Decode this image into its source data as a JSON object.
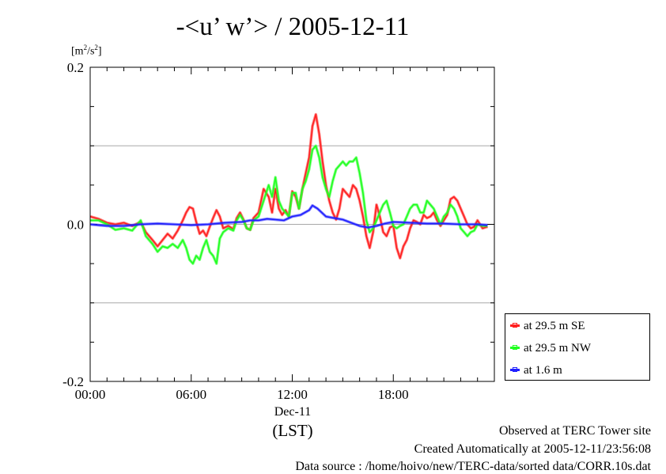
{
  "chart_data": {
    "type": "line",
    "title": "-<u’ w’> / 2005-12-11",
    "ylabel_unit": "[m²/s²]",
    "xlabel": "Dec-11",
    "xunit": "(LST)",
    "ylim": [
      -0.2,
      0.2
    ],
    "xlim": [
      0,
      24
    ],
    "y_ticks": [
      -0.2,
      0.0,
      0.2
    ],
    "y_tick_labels": [
      "-0.2",
      "0.0",
      "0.2"
    ],
    "y_minor_ticks": [
      -0.15,
      -0.1,
      -0.05,
      0.05,
      0.1,
      0.15
    ],
    "x_ticks": [
      0,
      6,
      12,
      18
    ],
    "x_tick_labels": [
      "00:00",
      "06:00",
      "12:00",
      "18:00"
    ],
    "x_minor_every_hours": 1,
    "grid": "horizontal at ±0.1",
    "legend_position": "right, outside plot",
    "series": [
      {
        "name": "at 29.5 m SE",
        "color": "#ff2020",
        "x": [
          0,
          0.5,
          1,
          1.5,
          2,
          2.5,
          3,
          3.3,
          3.7,
          4,
          4.3,
          4.6,
          4.9,
          5.2,
          5.5,
          5.7,
          5.9,
          6.1,
          6.3,
          6.5,
          6.7,
          6.9,
          7.1,
          7.3,
          7.5,
          7.7,
          7.9,
          8.2,
          8.5,
          8.7,
          8.9,
          9.1,
          9.3,
          9.5,
          9.7,
          10,
          10.3,
          10.6,
          10.8,
          11,
          11.2,
          11.4,
          11.6,
          11.8,
          12,
          12.2,
          12.4,
          12.6,
          12.8,
          13,
          13.2,
          13.4,
          13.6,
          13.8,
          14,
          14.2,
          14.4,
          14.6,
          14.8,
          15,
          15.2,
          15.4,
          15.6,
          15.8,
          16,
          16.2,
          16.4,
          16.6,
          16.8,
          17,
          17.2,
          17.4,
          17.6,
          17.8,
          18,
          18.2,
          18.4,
          18.6,
          18.8,
          19,
          19.2,
          19.4,
          19.6,
          19.8,
          20,
          20.2,
          20.4,
          20.6,
          20.8,
          21,
          21.2,
          21.4,
          21.6,
          21.8,
          22,
          22.2,
          22.4,
          22.6,
          22.8,
          23,
          23.3,
          23.6
        ],
        "values": [
          0.01,
          0.007,
          0.002,
          0.0,
          0.002,
          -0.002,
          0.003,
          -0.01,
          -0.02,
          -0.028,
          -0.02,
          -0.012,
          -0.018,
          -0.008,
          0.005,
          0.015,
          0.022,
          0.02,
          0.003,
          -0.012,
          -0.008,
          -0.015,
          -0.003,
          0.008,
          0.018,
          0.01,
          -0.005,
          -0.002,
          -0.006,
          0.008,
          0.015,
          0.006,
          -0.005,
          -0.007,
          0.008,
          0.015,
          0.045,
          0.035,
          0.015,
          0.045,
          0.02,
          0.012,
          0.018,
          0.01,
          0.042,
          0.035,
          0.02,
          0.045,
          0.065,
          0.085,
          0.125,
          0.14,
          0.115,
          0.08,
          0.05,
          0.03,
          0.015,
          0.006,
          0.02,
          0.045,
          0.04,
          0.035,
          0.05,
          0.045,
          0.03,
          0.01,
          -0.015,
          -0.03,
          -0.01,
          0.025,
          0.01,
          -0.01,
          -0.015,
          -0.004,
          -0.002,
          -0.03,
          -0.043,
          -0.028,
          -0.02,
          -0.005,
          0.005,
          0.003,
          0.0,
          0.012,
          0.008,
          0.01,
          0.015,
          0.005,
          -0.002,
          0.005,
          0.012,
          0.032,
          0.035,
          0.03,
          0.02,
          0.01,
          0.0,
          -0.005,
          -0.003,
          0.005,
          -0.005,
          -0.003
        ]
      },
      {
        "name": "at 29.5 m NW",
        "color": "#20ff20",
        "x": [
          0,
          0.5,
          1,
          1.5,
          2,
          2.5,
          3,
          3.3,
          3.7,
          4,
          4.3,
          4.6,
          4.9,
          5.2,
          5.5,
          5.7,
          5.9,
          6.1,
          6.3,
          6.5,
          6.7,
          6.9,
          7.1,
          7.3,
          7.5,
          7.7,
          7.9,
          8.2,
          8.5,
          8.7,
          8.9,
          9.1,
          9.3,
          9.5,
          9.7,
          10,
          10.3,
          10.6,
          10.8,
          11,
          11.2,
          11.4,
          11.6,
          11.8,
          12,
          12.2,
          12.4,
          12.6,
          12.8,
          13,
          13.2,
          13.4,
          13.6,
          13.8,
          14,
          14.2,
          14.4,
          14.6,
          14.8,
          15,
          15.2,
          15.4,
          15.6,
          15.8,
          16,
          16.2,
          16.4,
          16.6,
          16.8,
          17,
          17.2,
          17.4,
          17.6,
          17.8,
          18,
          18.2,
          18.4,
          18.6,
          18.8,
          19,
          19.2,
          19.4,
          19.6,
          19.8,
          20,
          20.2,
          20.4,
          20.6,
          20.8,
          21,
          21.2,
          21.4,
          21.6,
          21.8,
          22,
          22.2,
          22.4,
          22.6,
          22.8,
          23,
          23.3,
          23.6
        ],
        "values": [
          0.005,
          0.005,
          0.0,
          -0.007,
          -0.005,
          -0.008,
          0.005,
          -0.015,
          -0.025,
          -0.035,
          -0.028,
          -0.03,
          -0.025,
          -0.03,
          -0.02,
          -0.03,
          -0.045,
          -0.05,
          -0.04,
          -0.045,
          -0.03,
          -0.02,
          -0.035,
          -0.04,
          -0.05,
          -0.018,
          -0.01,
          -0.005,
          -0.008,
          0.005,
          0.012,
          0.005,
          -0.005,
          -0.007,
          0.005,
          0.01,
          0.03,
          0.05,
          0.035,
          0.06,
          0.03,
          0.02,
          0.015,
          0.01,
          0.04,
          0.04,
          0.02,
          0.045,
          0.055,
          0.07,
          0.095,
          0.1,
          0.085,
          0.06,
          0.045,
          0.035,
          0.055,
          0.07,
          0.075,
          0.08,
          0.075,
          0.08,
          0.08,
          0.085,
          0.065,
          0.04,
          0.005,
          -0.01,
          -0.005,
          0.005,
          0.015,
          0.025,
          0.03,
          0.015,
          -0.002,
          -0.005,
          -0.002,
          0.0,
          0.01,
          0.02,
          0.025,
          0.025,
          0.015,
          0.015,
          0.03,
          0.025,
          0.02,
          0.01,
          0.0,
          0.01,
          0.015,
          0.025,
          0.02,
          0.01,
          -0.005,
          -0.01,
          -0.015,
          -0.01,
          -0.008,
          0.0,
          -0.002,
          -0.002
        ]
      },
      {
        "name": "at 1.6 m",
        "color": "#2020ff",
        "x": [
          0,
          1,
          2,
          3,
          4,
          5,
          6,
          7,
          8,
          9,
          9.5,
          10,
          10.5,
          11,
          11.5,
          12,
          12.5,
          13,
          13.2,
          13.5,
          14,
          14.5,
          15,
          15.5,
          16,
          16.5,
          17,
          17.5,
          18,
          19,
          20,
          21,
          22,
          23,
          23.6
        ],
        "values": [
          0.0,
          -0.002,
          -0.002,
          0.0,
          0.001,
          0.0,
          -0.001,
          0.0,
          0.002,
          0.003,
          0.005,
          0.005,
          0.007,
          0.006,
          0.005,
          0.01,
          0.012,
          0.018,
          0.024,
          0.02,
          0.01,
          0.008,
          0.006,
          0.002,
          -0.002,
          -0.004,
          -0.002,
          0.001,
          0.003,
          0.002,
          0.001,
          0.001,
          0.0,
          0.0,
          -0.001
        ]
      }
    ]
  },
  "footer": {
    "line1": "Observed at TERC Tower site",
    "line2": "Created Automatically at 2005-12-11/23:56:08",
    "line3": "Data source : /home/hoivo/new/TERC-data/sorted  data/CORR.10s.dat"
  }
}
